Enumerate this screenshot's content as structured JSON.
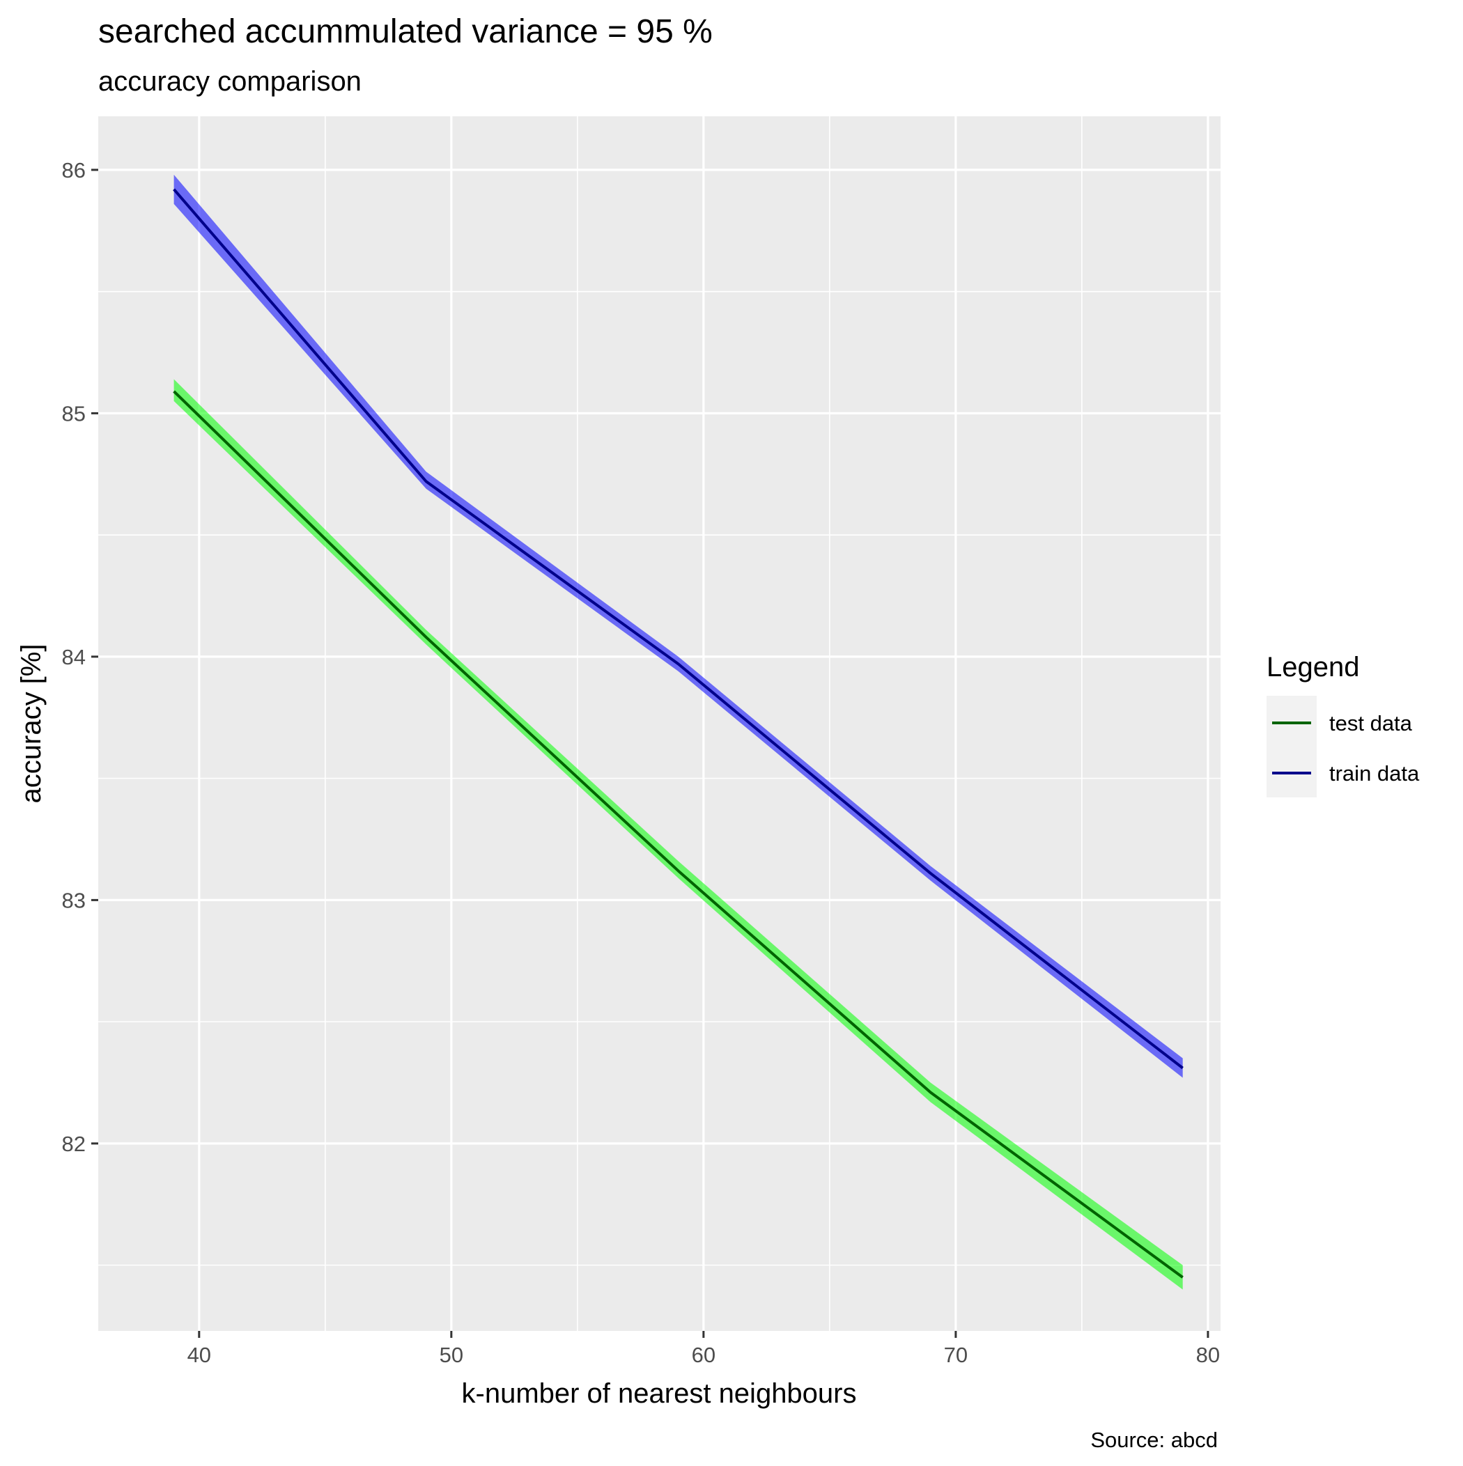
{
  "chart_data": {
    "type": "line",
    "title": "searched accummulated variance =  95 %",
    "subtitle": "accuracy comparison",
    "xlabel": "k-number of nearest neighbours",
    "ylabel": "accuracy [%]",
    "caption": "Source: abcd",
    "x": [
      39,
      49,
      59,
      69,
      79
    ],
    "xlim": [
      36,
      80.5
    ],
    "ylim": [
      81.23,
      86.22
    ],
    "x_ticks": [
      40,
      50,
      60,
      70,
      80
    ],
    "y_ticks": [
      82,
      83,
      84,
      85,
      86
    ],
    "x_tick_labels": [
      "40",
      "50",
      "60",
      "70",
      "80"
    ],
    "y_tick_labels": [
      "82",
      "83",
      "84",
      "85",
      "86"
    ],
    "grid": true,
    "background_color": "#ebebeb",
    "grid_color": "#ffffff",
    "series": [
      {
        "name": "test data",
        "values": [
          85.09,
          84.08,
          83.12,
          82.21,
          81.45
        ],
        "ribbon_lower": [
          85.05,
          84.05,
          83.09,
          82.17,
          81.4
        ],
        "ribbon_upper": [
          85.14,
          84.11,
          83.16,
          82.25,
          81.5
        ],
        "line_color": "#006400",
        "ribbon_color": "#00ff00"
      },
      {
        "name": "train data",
        "values": [
          85.92,
          84.72,
          83.97,
          83.11,
          82.31
        ],
        "ribbon_lower": [
          85.86,
          84.69,
          83.94,
          83.08,
          82.27
        ],
        "ribbon_upper": [
          85.98,
          84.76,
          84.0,
          83.14,
          82.35
        ],
        "line_color": "#00008b",
        "ribbon_color": "#0000ff"
      }
    ],
    "legend": {
      "title": "Legend",
      "position": "right",
      "background_color": "#f2f2f2"
    }
  }
}
